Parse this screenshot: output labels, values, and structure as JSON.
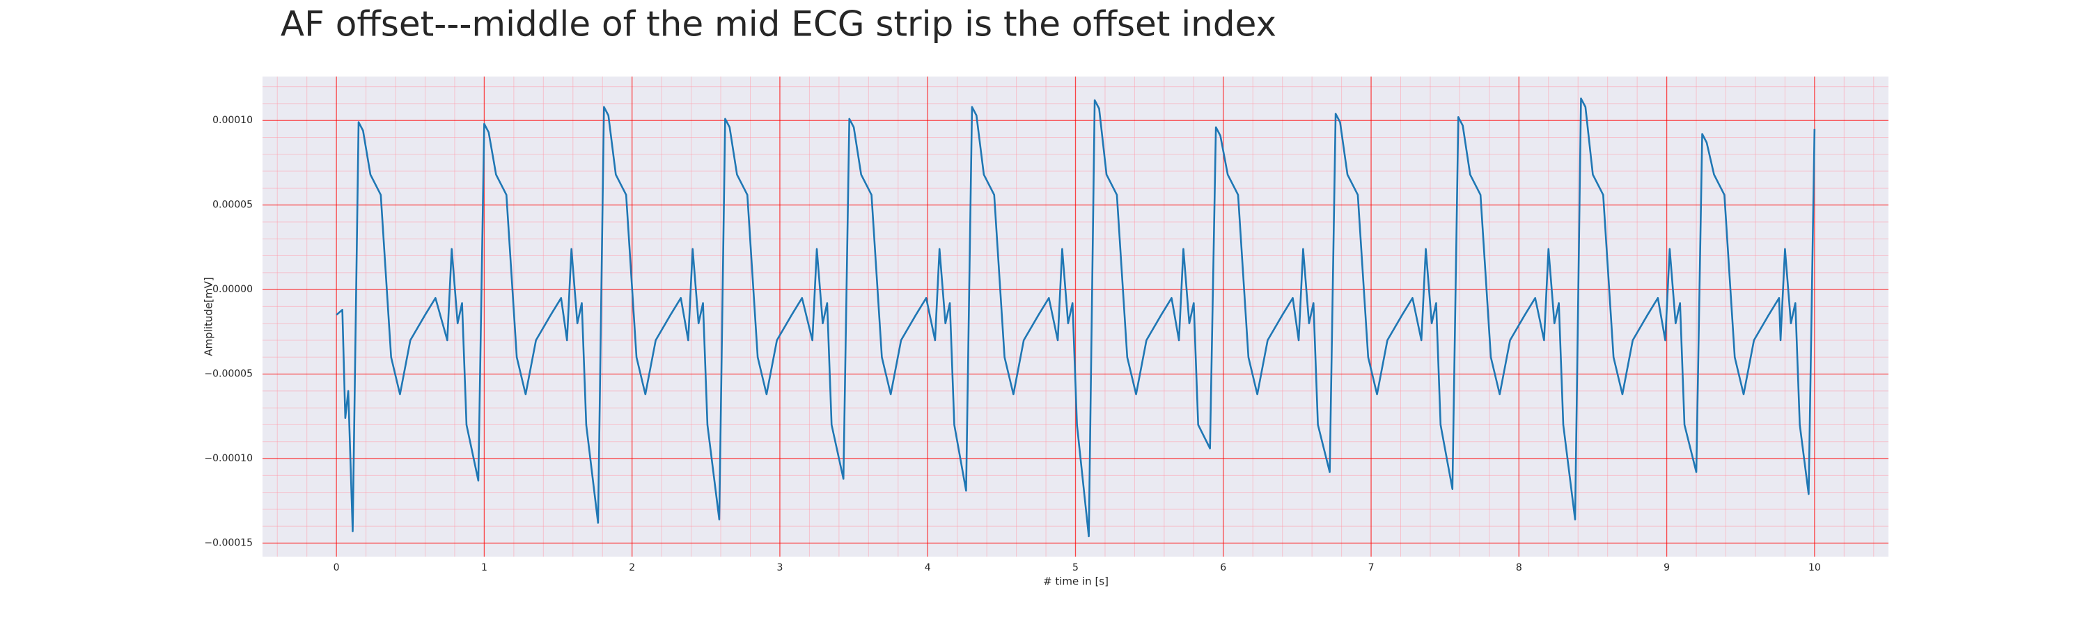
{
  "chart_data": {
    "type": "line",
    "title": "AF offset---middle of the mid ECG strip is the offset index",
    "xlabel": "# time in [s]",
    "ylabel": "Amplitude[mV]",
    "xlim": [
      -0.5,
      10.5
    ],
    "ylim": [
      -0.000158,
      0.000126
    ],
    "xticks": [
      0,
      1,
      2,
      3,
      4,
      5,
      6,
      7,
      8,
      9,
      10
    ],
    "yticks": [
      {
        "value": -0.00015,
        "label": "−0.00015"
      },
      {
        "value": -0.0001,
        "label": "−0.00010"
      },
      {
        "value": -5e-05,
        "label": "−0.00005"
      },
      {
        "value": 0,
        "label": "0.00000"
      },
      {
        "value": 5e-05,
        "label": "0.00005"
      },
      {
        "value": 0.0001,
        "label": "0.00010"
      }
    ],
    "xminorticks": [
      -0.4,
      -0.2,
      0.2,
      0.4,
      0.6,
      0.8,
      1.2,
      1.4,
      1.6,
      1.8,
      2.2,
      2.4,
      2.6,
      2.8,
      3.2,
      3.4,
      3.6,
      3.8,
      4.2,
      4.4,
      4.6,
      4.8,
      5.2,
      5.4,
      5.6,
      5.8,
      6.2,
      6.4,
      6.6,
      6.8,
      7.2,
      7.4,
      7.6,
      7.8,
      8.2,
      8.4,
      8.6,
      8.8,
      9.2,
      9.4,
      9.6,
      9.8,
      10.2,
      10.4
    ],
    "yminorticks": [
      -0.00014,
      -0.00013,
      -0.00012,
      -0.00011,
      -9e-05,
      -8e-05,
      -7e-05,
      -6e-05,
      -4e-05,
      -3e-05,
      -2e-05,
      -1e-05,
      1e-05,
      2e-05,
      3e-05,
      4e-05,
      6e-05,
      7e-05,
      8e-05,
      9e-05,
      0.00011,
      0.00012
    ],
    "grid": true,
    "grid_color": "#ff0000",
    "minor_grid_color": "#ff9aa8",
    "background": "#eaeaf2",
    "series": [
      {
        "color": "#1f77b4",
        "x": [
          0,
          0.04,
          0.06,
          0.08,
          0.11,
          0.15,
          0.18,
          0.23,
          0.3,
          0.37,
          0.43,
          0.5,
          0.6,
          0.67,
          0.75,
          0.78,
          0.82,
          0.85,
          0.88,
          0.96,
          1.0,
          1.03,
          1.08,
          1.15,
          1.22,
          1.28,
          1.35,
          1.45,
          1.52,
          1.56,
          1.59,
          1.63,
          1.66,
          1.69,
          1.77,
          1.81,
          1.84,
          1.89,
          1.96,
          2.03,
          2.09,
          2.16,
          2.26,
          2.33,
          2.38,
          2.41,
          2.45,
          2.48,
          2.51,
          2.59,
          2.63,
          2.66,
          2.71,
          2.78,
          2.85,
          2.91,
          2.98,
          3.08,
          3.15,
          3.22,
          3.25,
          3.29,
          3.32,
          3.35,
          3.43,
          3.47,
          3.5,
          3.55,
          3.62,
          3.69,
          3.75,
          3.82,
          3.92,
          3.99,
          4.05,
          4.08,
          4.12,
          4.15,
          4.18,
          4.26,
          4.3,
          4.33,
          4.38,
          4.45,
          4.52,
          4.58,
          4.65,
          4.75,
          4.82,
          4.88,
          4.91,
          4.95,
          4.98,
          5.01,
          5.09,
          5.13,
          5.16,
          5.21,
          5.28,
          5.35,
          5.41,
          5.48,
          5.58,
          5.65,
          5.7,
          5.73,
          5.77,
          5.8,
          5.83,
          5.91,
          5.95,
          5.98,
          6.03,
          6.1,
          6.17,
          6.23,
          6.3,
          6.4,
          6.47,
          6.51,
          6.54,
          6.58,
          6.61,
          6.64,
          6.72,
          6.76,
          6.79,
          6.84,
          6.91,
          6.98,
          7.04,
          7.11,
          7.21,
          7.28,
          7.34,
          7.37,
          7.41,
          7.44,
          7.47,
          7.55,
          7.59,
          7.62,
          7.67,
          7.74,
          7.81,
          7.87,
          7.94,
          8.04,
          8.11,
          8.17,
          8.2,
          8.24,
          8.27,
          8.3,
          8.38,
          8.42,
          8.45,
          8.5,
          8.57,
          8.64,
          8.7,
          8.77,
          8.87,
          8.94,
          8.99,
          9.02,
          9.06,
          9.09,
          9.12,
          9.2,
          9.24,
          9.27,
          9.32,
          9.39,
          9.46,
          9.52,
          9.59,
          9.69,
          9.76,
          9.77,
          9.8,
          9.84,
          9.87,
          9.9,
          9.96,
          10.0
        ],
        "values": [
          -1.5e-05,
          -1.2e-05,
          -7.6e-05,
          -6e-05,
          -0.000143,
          9.9e-05,
          9.4e-05,
          6.8e-05,
          5.6e-05,
          -4e-05,
          -6.2e-05,
          -3e-05,
          -1.5e-05,
          -5e-06,
          -3e-05,
          2.4e-05,
          -2e-05,
          -8e-06,
          -8e-05,
          -0.000113,
          9.8e-05,
          9.3e-05,
          6.8e-05,
          5.6e-05,
          -4e-05,
          -6.2e-05,
          -3e-05,
          -1.5e-05,
          -5e-06,
          -3e-05,
          2.4e-05,
          -2e-05,
          -8e-06,
          -8e-05,
          -0.000138,
          0.000108,
          0.000103,
          6.8e-05,
          5.6e-05,
          -4e-05,
          -6.2e-05,
          -3e-05,
          -1.5e-05,
          -5e-06,
          -3e-05,
          2.4e-05,
          -2e-05,
          -8e-06,
          -8e-05,
          -0.000136,
          0.000101,
          9.6e-05,
          6.8e-05,
          5.6e-05,
          -4e-05,
          -6.2e-05,
          -3e-05,
          -1.5e-05,
          -5e-06,
          -3e-05,
          2.4e-05,
          -2e-05,
          -8e-06,
          -8e-05,
          -0.000112,
          0.000101,
          9.6e-05,
          6.8e-05,
          5.6e-05,
          -4e-05,
          -6.2e-05,
          -3e-05,
          -1.5e-05,
          -5e-06,
          -3e-05,
          2.4e-05,
          -2e-05,
          -8e-06,
          -8e-05,
          -0.000119,
          0.000108,
          0.000103,
          6.8e-05,
          5.6e-05,
          -4e-05,
          -6.2e-05,
          -3e-05,
          -1.5e-05,
          -5e-06,
          -3e-05,
          2.4e-05,
          -2e-05,
          -8e-06,
          -8e-05,
          -0.000146,
          0.000112,
          0.000107,
          6.8e-05,
          5.6e-05,
          -4e-05,
          -6.2e-05,
          -3e-05,
          -1.5e-05,
          -5e-06,
          -3e-05,
          2.4e-05,
          -2e-05,
          -8e-06,
          -8e-05,
          -9.4e-05,
          9.6e-05,
          9.1e-05,
          6.8e-05,
          5.6e-05,
          -4e-05,
          -6.2e-05,
          -3e-05,
          -1.5e-05,
          -5e-06,
          -3e-05,
          2.4e-05,
          -2e-05,
          -8e-06,
          -8e-05,
          -0.000108,
          0.000104,
          9.9e-05,
          6.8e-05,
          5.6e-05,
          -4e-05,
          -6.2e-05,
          -3e-05,
          -1.5e-05,
          -5e-06,
          -3e-05,
          2.4e-05,
          -2e-05,
          -8e-06,
          -8e-05,
          -0.000118,
          0.000102,
          9.7e-05,
          6.8e-05,
          5.6e-05,
          -4e-05,
          -6.2e-05,
          -3e-05,
          -1.5e-05,
          -5e-06,
          -3e-05,
          2.4e-05,
          -2e-05,
          -8e-06,
          -8e-05,
          -0.000136,
          0.000113,
          0.000108,
          6.8e-05,
          5.6e-05,
          -4e-05,
          -6.2e-05,
          -3e-05,
          -1.5e-05,
          -5e-06,
          -3e-05,
          2.4e-05,
          -2e-05,
          -8e-06,
          -8e-05,
          -0.000108,
          9.2e-05,
          8.7e-05,
          6.8e-05,
          5.6e-05,
          -4e-05,
          -6.2e-05,
          -3e-05,
          -1.5e-05,
          -5e-06,
          -3e-05,
          2.4e-05,
          -2e-05,
          -8e-06,
          -8e-05,
          -0.000121,
          9.5e-05
        ]
      }
    ]
  }
}
